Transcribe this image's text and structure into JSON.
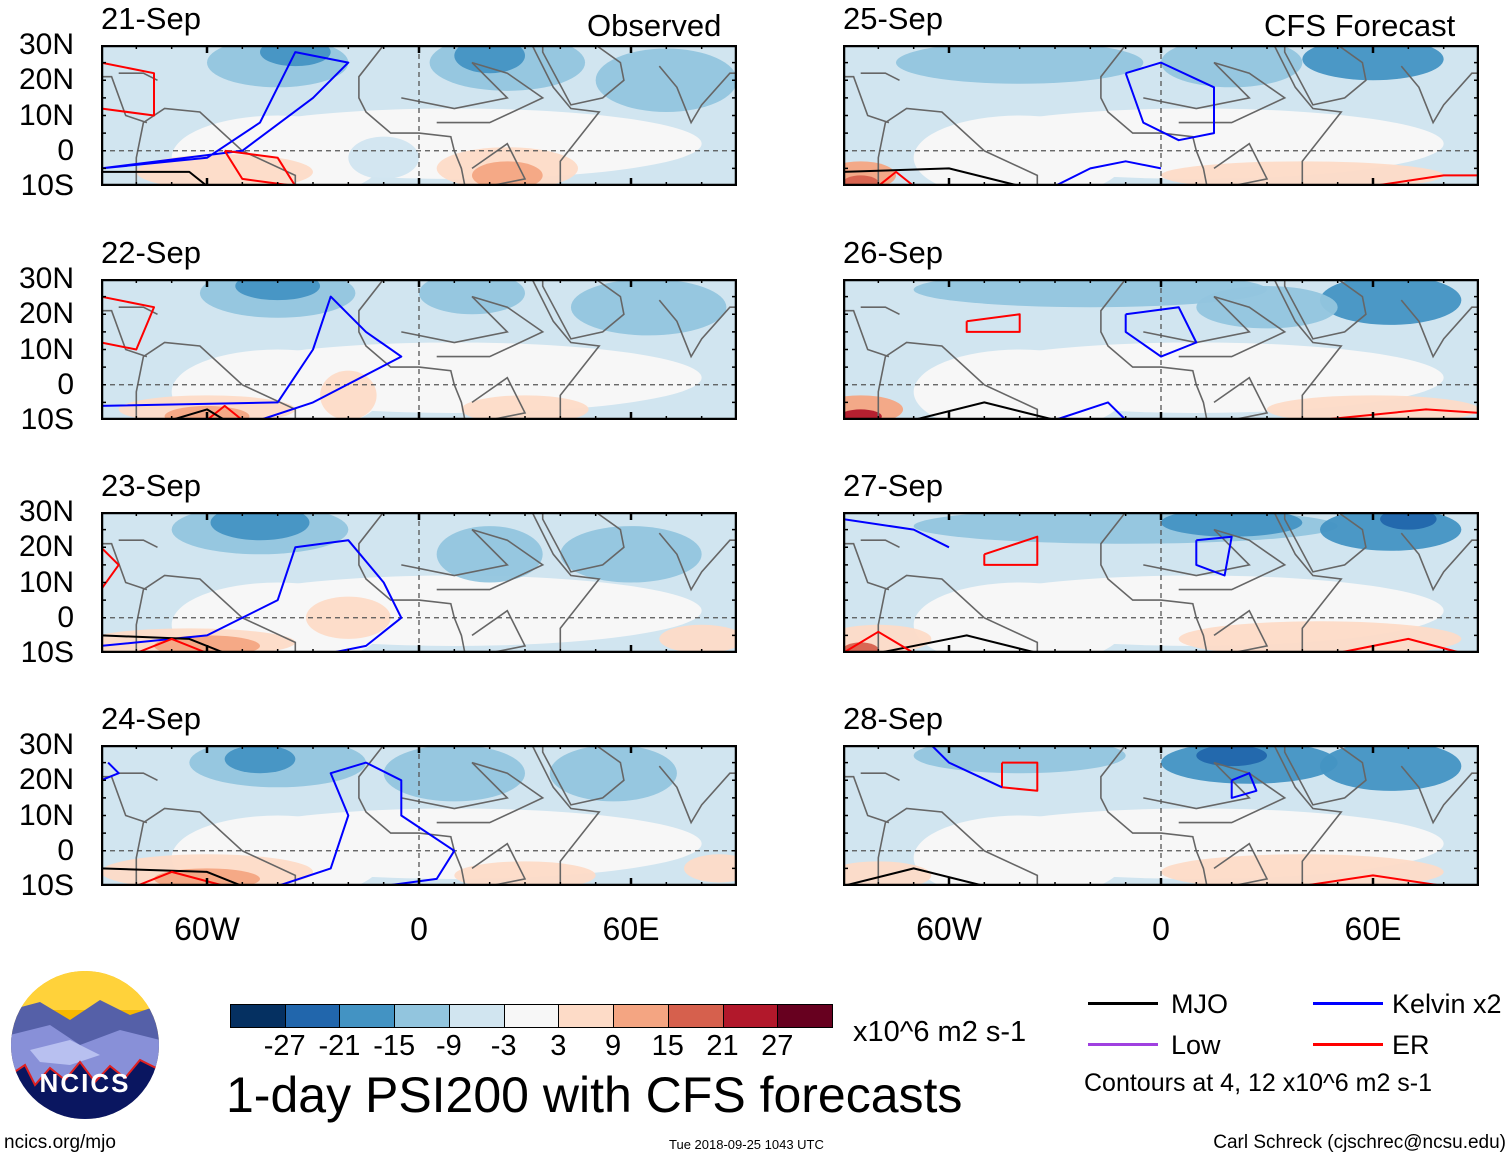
{
  "left_title": "Observed",
  "right_title": "CFS Forecast",
  "panels": [
    {
      "date": "21-Sep"
    },
    {
      "date": "22-Sep"
    },
    {
      "date": "23-Sep"
    },
    {
      "date": "24-Sep"
    },
    {
      "date": "25-Sep"
    },
    {
      "date": "26-Sep"
    },
    {
      "date": "27-Sep"
    },
    {
      "date": "28-Sep"
    }
  ],
  "lat_labels": [
    "30N",
    "20N",
    "10N",
    "0",
    "10S"
  ],
  "lon_labels": [
    "60W",
    "0",
    "60E"
  ],
  "colorbar": {
    "colors": [
      "#053061",
      "#2166ac",
      "#4393c3",
      "#92c5de",
      "#d1e5f0",
      "#f7f7f7",
      "#fddbc7",
      "#f4a582",
      "#d6604d",
      "#b2182b",
      "#67001f"
    ],
    "labels": [
      "-27",
      "-21",
      "-15",
      "-9",
      "-3",
      "3",
      "9",
      "15",
      "21",
      "27"
    ],
    "units": "x10^6 m2 s-1"
  },
  "legend": {
    "items": [
      {
        "label": "MJO",
        "color": "#000000"
      },
      {
        "label": "Kelvin x2",
        "color": "#0000ff"
      },
      {
        "label": "Low",
        "color": "#a040e0"
      },
      {
        "label": "ER",
        "color": "#ff0000"
      }
    ],
    "contours_note": "Contours at 4, 12 x10^6 m2 s-1"
  },
  "main_title": "1-day PSI200 with CFS forecasts",
  "logo_text": "NCICS",
  "footer": {
    "url": "ncics.org/mjo",
    "timestamp": "Tue 2018-09-25 1043 UTC",
    "author": "Carl Schreck (cjschrec@ncsu.edu)"
  }
}
